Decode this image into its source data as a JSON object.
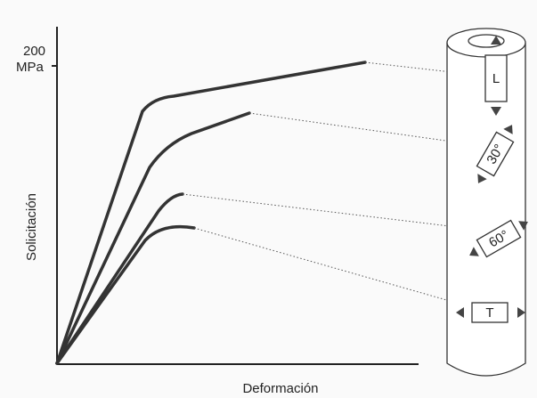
{
  "axes": {
    "y_tick_value": 200,
    "y_tick_unit": "MPa",
    "y_label": "Solicitación",
    "x_label": "Deformación"
  },
  "specimens": [
    {
      "label": "L"
    },
    {
      "label": "30°"
    },
    {
      "label": "60°"
    },
    {
      "label": "T"
    }
  ]
}
